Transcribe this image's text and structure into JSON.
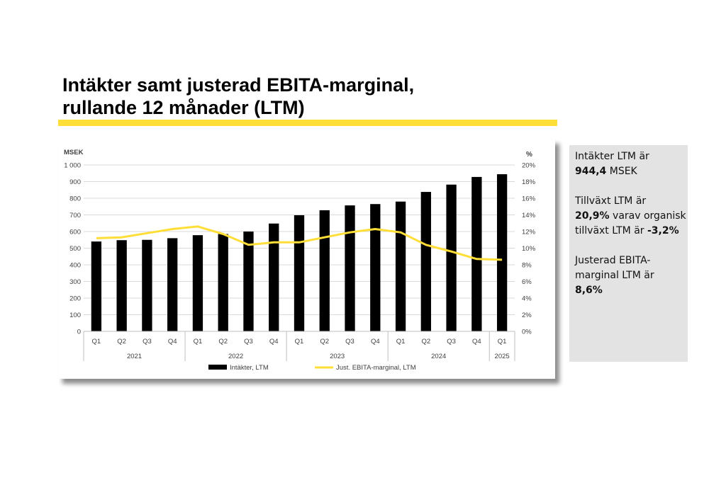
{
  "title": {
    "line1": "Intäkter samt justerad EBITA-marginal,",
    "line2": "rullande 12 månader (LTM)"
  },
  "colors": {
    "accent": "#ffde38",
    "bars": "#000000",
    "line": "#ffde38",
    "panel": "#e3e3e3"
  },
  "chart_data": {
    "type": "bar",
    "categories": [
      "Q1",
      "Q2",
      "Q3",
      "Q4",
      "Q1",
      "Q2",
      "Q3",
      "Q4",
      "Q1",
      "Q2",
      "Q3",
      "Q4",
      "Q1",
      "Q2",
      "Q3",
      "Q4",
      "Q1"
    ],
    "years": [
      {
        "label": "2021",
        "count": 4
      },
      {
        "label": "2022",
        "count": 4
      },
      {
        "label": "2023",
        "count": 4
      },
      {
        "label": "2024",
        "count": 4
      },
      {
        "label": "2025",
        "count": 1
      }
    ],
    "series": [
      {
        "name": "Intäkter, LTM",
        "type": "bar",
        "axis": "left",
        "values": [
          540,
          548,
          550,
          560,
          578,
          585,
          600,
          648,
          698,
          728,
          757,
          765,
          780,
          838,
          882,
          928,
          944.4
        ]
      },
      {
        "name": "Just. EBITA-marginal, LTM",
        "type": "line",
        "axis": "right",
        "values": [
          11.2,
          11.3,
          11.8,
          12.3,
          12.6,
          11.7,
          10.4,
          10.7,
          10.7,
          11.3,
          11.9,
          12.3,
          11.9,
          10.4,
          9.6,
          8.7,
          8.6
        ]
      }
    ],
    "ylabel_left": "MSEK",
    "ylabel_right": "%",
    "ylim_left": [
      0,
      1000
    ],
    "ylim_right": [
      0,
      20
    ],
    "yticks_left": [
      "0",
      "100",
      "200",
      "300",
      "400",
      "500",
      "600",
      "700",
      "800",
      "900",
      "1 000"
    ],
    "yticks_right": [
      "0%",
      "2%",
      "4%",
      "6%",
      "8%",
      "10%",
      "12%",
      "14%",
      "16%",
      "18%",
      "20%"
    ],
    "grid": true,
    "legend": "bottom"
  },
  "side": {
    "p1_text": "Intäkter LTM är",
    "p1_value": "944,4",
    "p1_unit": " MSEK",
    "p2_text": "Tillväxt LTM är",
    "p2_value": "20,9%",
    "p2_text2": " varav organisk tillväxt LTM är ",
    "p2_value2": "-3,2%",
    "p3_text": "Justerad EBITA-marginal LTM är",
    "p3_value": "8,6%"
  }
}
